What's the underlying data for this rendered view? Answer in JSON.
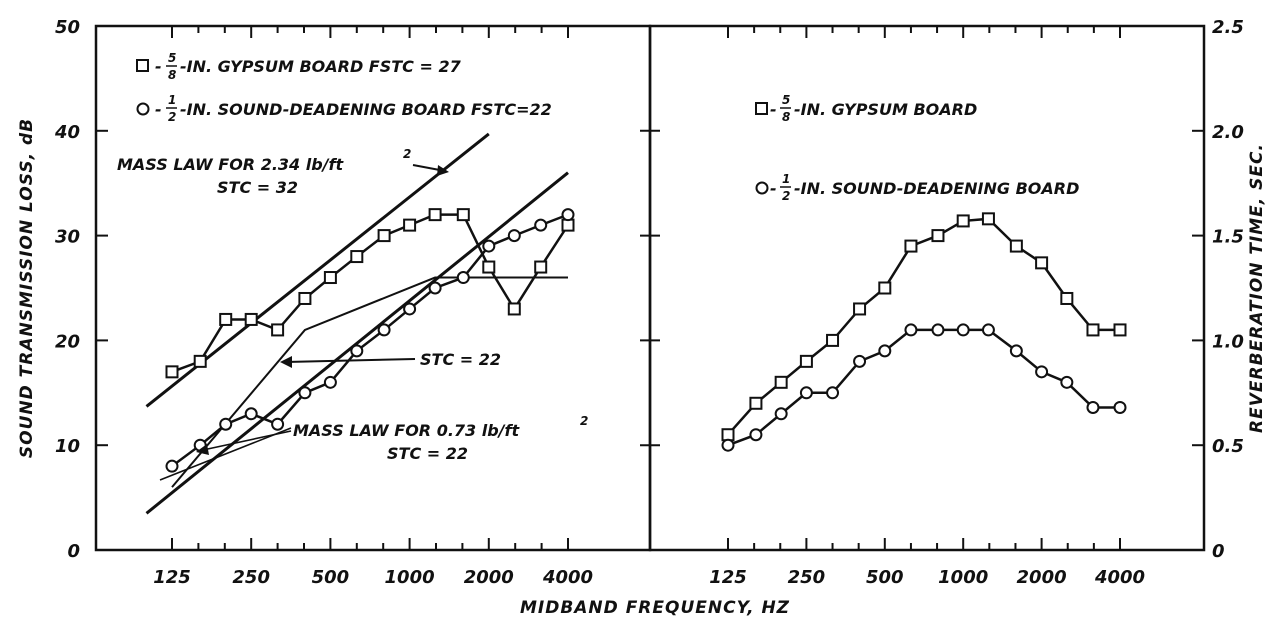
{
  "chart_data": {
    "type": "line",
    "xlabel": "MIDBAND FREQUENCY, HZ",
    "x_ticks": [
      "125",
      "250",
      "500",
      "1000",
      "2000",
      "4000"
    ],
    "x_scale": "log2",
    "panels": [
      {
        "ylabel": "SOUND TRANSMISSION LOSS, dB",
        "ylim": [
          0,
          50
        ],
        "y_ticks": [
          "0",
          "10",
          "20",
          "30",
          "40",
          "50"
        ],
        "x": [
          125,
          160,
          200,
          250,
          315,
          400,
          500,
          630,
          800,
          1000,
          1250,
          1600,
          2000,
          2500,
          3150,
          4000
        ],
        "series": [
          {
            "name": "5/8-IN. GYPSUM BOARD FSTC = 27",
            "marker": "square",
            "values": [
              17,
              18,
              22,
              22,
              21,
              24,
              26,
              28,
              30,
              31,
              32,
              32,
              27,
              23,
              27,
              31
            ]
          },
          {
            "name": "1/2-IN. SOUND-DEADENING BOARD FSTC=22",
            "marker": "circle",
            "values": [
              8,
              10,
              12,
              13,
              12,
              15,
              16,
              19,
              21,
              23,
              25,
              26,
              29,
              30,
              31,
              32
            ]
          }
        ],
        "reference_lines": [
          {
            "label": "MASS LAW FOR 2.34 lb/ft²",
            "stc": "STC = 32",
            "from": [
              100,
              13.7
            ],
            "to": [
              2000,
              39.7
            ]
          },
          {
            "label": "MASS LAW FOR 0.73 lb/ft²",
            "stc": "STC = 22",
            "from": [
              100,
              3.5
            ],
            "to": [
              4000,
              36
            ]
          },
          {
            "label": "STC = 22",
            "contour": [
              [
                125,
                6
              ],
              [
                400,
                21
              ],
              [
                1250,
                26
              ],
              [
                4000,
                26
              ]
            ]
          }
        ],
        "legend_position": "top-left"
      },
      {
        "ylabel": "REVERBERATION TIME, SEC.",
        "ylim": [
          0,
          2.5
        ],
        "y_ticks": [
          "0",
          "0.5",
          "1.0",
          "1.5",
          "2.0",
          "2.5"
        ],
        "x": [
          125,
          160,
          200,
          250,
          315,
          400,
          500,
          630,
          800,
          1000,
          1250,
          1600,
          2000,
          2500,
          3150,
          4000
        ],
        "series": [
          {
            "name": "5/8-IN. GYPSUM BOARD",
            "marker": "square",
            "values": [
              0.55,
              0.7,
              0.8,
              0.9,
              1.0,
              1.15,
              1.25,
              1.45,
              1.5,
              1.57,
              1.58,
              1.45,
              1.37,
              1.2,
              1.05,
              1.05
            ]
          },
          {
            "name": "1/2-IN. SOUND-DEADENING BOARD",
            "marker": "circle",
            "values": [
              0.5,
              0.55,
              0.65,
              0.75,
              0.75,
              0.9,
              0.95,
              1.05,
              1.05,
              1.05,
              1.05,
              0.95,
              0.85,
              0.8,
              0.68,
              0.68
            ]
          }
        ],
        "legend_position": "top-right"
      }
    ],
    "annotations": {
      "mass_law_heavy": "MASS LAW FOR 2.34 lb/ft",
      "mass_law_heavy_stc": "STC = 32",
      "stc_contour": "STC = 22",
      "mass_law_light": "MASS LAW FOR 0.73 lb/ft",
      "mass_law_light_stc": "STC = 22"
    },
    "grid": false
  },
  "legend_text": {
    "left_gypsum_tail": "-IN. GYPSUM BOARD FSTC = 27",
    "left_deadening_tail": "-IN. SOUND-DEADENING BOARD FSTC=22",
    "right_gypsum_tail": "-IN. GYPSUM BOARD",
    "right_deadening_tail": "-IN. SOUND-DEADENING BOARD",
    "frac_58_num": "5",
    "frac_58_den": "8",
    "frac_12_num": "1",
    "frac_12_den": "2",
    "dash": "-",
    "superscript": "2"
  },
  "colors": {
    "ink": "#111111",
    "background": "#ffffff"
  }
}
